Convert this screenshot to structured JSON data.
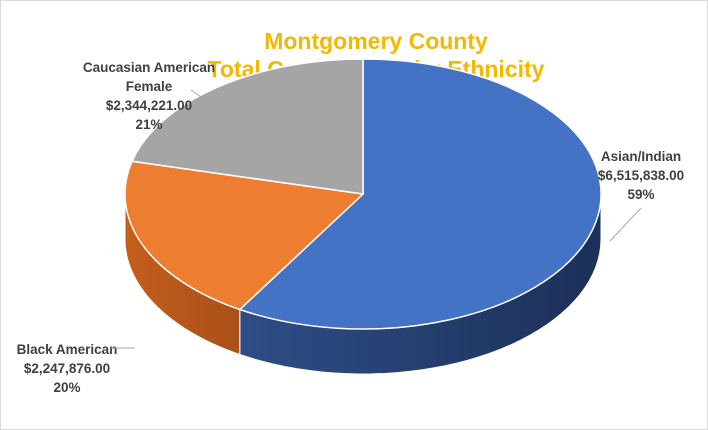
{
  "chart_data": {
    "type": "pie",
    "title": [
      "Montgomery County",
      "Total Commitment by Ethnicity"
    ],
    "title_color": "#F5B800",
    "slices": [
      {
        "name": "Asian/Indian",
        "value": 6515838.0,
        "value_label": "$6,515,838.00",
        "percent": "59%",
        "color": "#4472C4"
      },
      {
        "name": "Black American",
        "value": 2247876.0,
        "value_label": "$2,247,876.00",
        "percent": "20%",
        "color": "#ED7D31"
      },
      {
        "name": "Caucasian American Female",
        "value": 2344221.0,
        "value_label": "$2,344,221.00",
        "percent": "21%",
        "color": "#A5A5A5"
      }
    ],
    "legend": "none",
    "style": "3d-pie"
  }
}
